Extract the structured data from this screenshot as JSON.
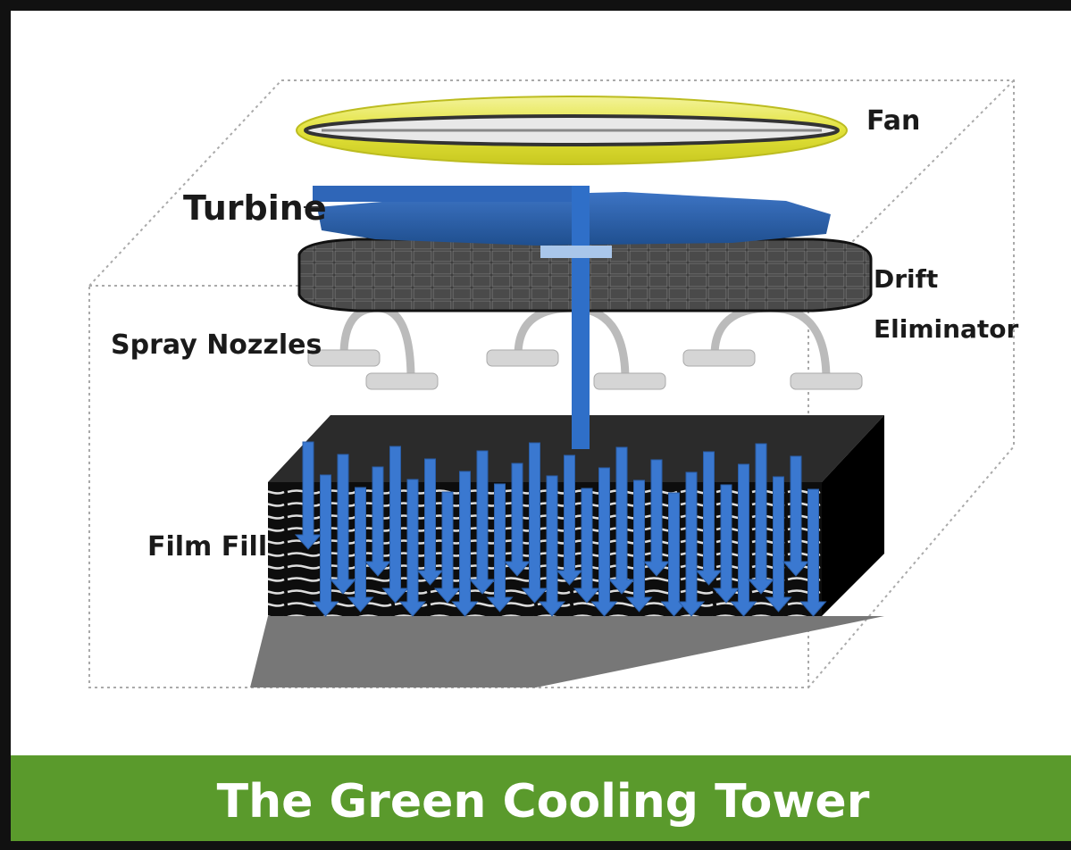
{
  "title": "The Green Cooling Tower",
  "labels": {
    "fan": "Fan",
    "turbine": "Turbine",
    "drift_eliminator": [
      "Drift",
      "Eliminator"
    ],
    "spray_nozzles": "Spray Nozzles",
    "film_fill": "Film Fill"
  }
}
